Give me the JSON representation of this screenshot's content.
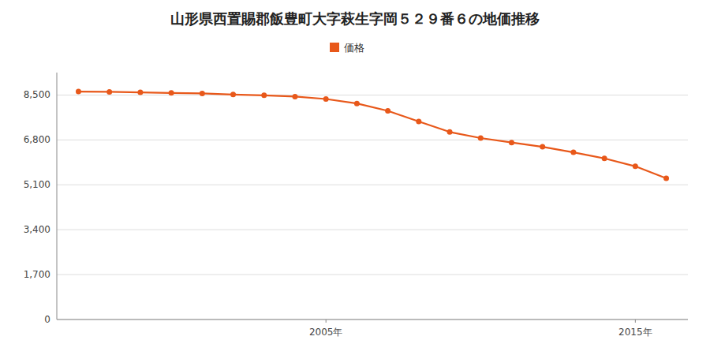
{
  "chart_data": {
    "type": "line",
    "title": "山形県西置賜郡飯豊町大字萩生字岡５２９番６の地価推移",
    "x": [
      1997,
      1998,
      1999,
      2000,
      2001,
      2002,
      2003,
      2004,
      2005,
      2006,
      2007,
      2008,
      2009,
      2010,
      2011,
      2012,
      2013,
      2014,
      2015,
      2016
    ],
    "series": [
      {
        "name": "価格",
        "color": "#e8581a",
        "marker": "circle",
        "values": [
          8630,
          8620,
          8600,
          8580,
          8560,
          8520,
          8490,
          8440,
          8350,
          8180,
          7900,
          7500,
          7100,
          6870,
          6700,
          6540,
          6330,
          6100,
          5800,
          5350
        ]
      }
    ],
    "xlim": [
      1996.3,
      2016.7
    ],
    "xticks": [
      {
        "value": 2005,
        "label": "2005年"
      },
      {
        "value": 2015,
        "label": "2015年"
      }
    ],
    "ylim": [
      0,
      9350
    ],
    "yticks": [
      0,
      {
        "value": 1700,
        "label": "1,700"
      },
      {
        "value": 3400,
        "label": "3,400"
      },
      {
        "value": 5100,
        "label": "5,100"
      },
      {
        "value": 6800,
        "label": "6,800"
      },
      {
        "value": 8500,
        "label": "8,500"
      }
    ],
    "grid": true,
    "legend": "top"
  }
}
